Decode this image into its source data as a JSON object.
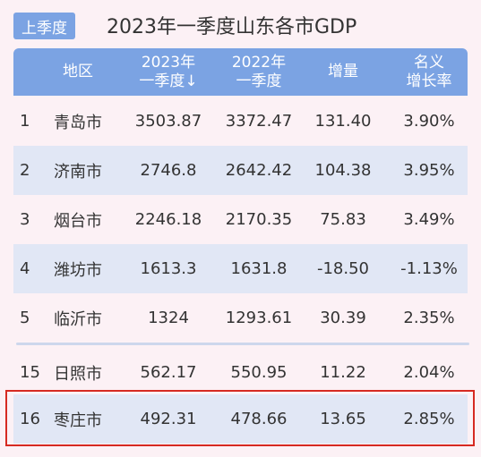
{
  "badge": "上季度",
  "title": "2023年一季度山东各市GDP",
  "headers": {
    "region": "地区",
    "y2023_line1": "2023年",
    "y2023_line2": "一季度↓",
    "y2022_line1": "2022年",
    "y2022_line2": "一季度",
    "increase": "增量",
    "rate_line1": "名义",
    "rate_line2": "增长率"
  },
  "rows": [
    {
      "rank": "1",
      "region": "青岛市",
      "v2023": "3503.87",
      "v2022": "3372.47",
      "inc": "131.40",
      "rate": "3.90%"
    },
    {
      "rank": "2",
      "region": "济南市",
      "v2023": "2746.8",
      "v2022": "2642.42",
      "inc": "104.38",
      "rate": "3.95%"
    },
    {
      "rank": "3",
      "region": "烟台市",
      "v2023": "2246.18",
      "v2022": "2170.35",
      "inc": "75.83",
      "rate": "3.49%"
    },
    {
      "rank": "4",
      "region": "潍坊市",
      "v2023": "1613.3",
      "v2022": "1631.8",
      "inc": "-18.50",
      "rate": "-1.13%"
    },
    {
      "rank": "5",
      "region": "临沂市",
      "v2023": "1324",
      "v2022": "1293.61",
      "inc": "30.39",
      "rate": "2.35%"
    },
    {
      "rank": "15",
      "region": "日照市",
      "v2023": "562.17",
      "v2022": "550.95",
      "inc": "11.22",
      "rate": "2.04%"
    },
    {
      "rank": "16",
      "region": "枣庄市",
      "v2023": "492.31",
      "v2022": "478.66",
      "inc": "13.65",
      "rate": "2.85%"
    }
  ],
  "colors": {
    "header_bg": "#7ba3e3",
    "shaded_row": "#e1e7f5",
    "background": "#fcf1f5",
    "highlight_border": "#d62a22"
  }
}
